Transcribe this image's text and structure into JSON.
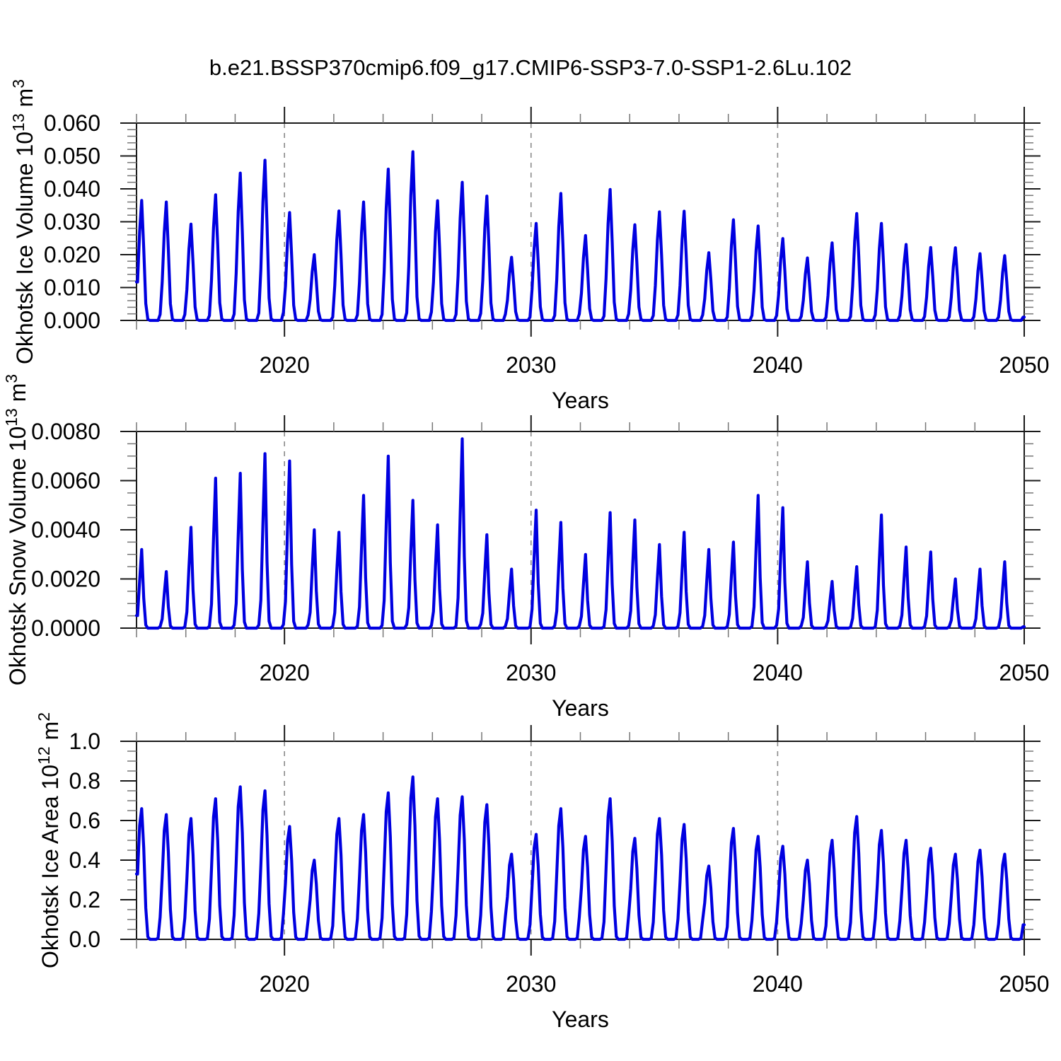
{
  "title": "b.e21.BSSP370cmip6.f09_g17.CMIP6-SSP3-7.0-SSP1-2.6Lu.102",
  "colors": {
    "line": "#0000e0",
    "axis": "#1a1a1a",
    "minor_tick": "#777777",
    "dashed_gridline": "#8a8a8a",
    "background": "#ffffff"
  },
  "chart_data": [
    {
      "type": "line",
      "panel": "okhotsk-ice-volume",
      "ylabel_segments": [
        {
          "t": "Okhotsk Ice Volume 10"
        },
        {
          "sup": "13"
        },
        {
          "t": " m"
        },
        {
          "sup": "3"
        }
      ],
      "xlabel": "Years",
      "xlim": [
        2014,
        2050
      ],
      "ylim": [
        0,
        0.06
      ],
      "grid": "dashed-vertical-only",
      "legend": "none",
      "xticks_major": [
        2020,
        2030,
        2040,
        2050
      ],
      "xtick_labels": [
        "2020",
        "2030",
        "2040",
        "2050"
      ],
      "xtick_minor_step": 2,
      "dashed_gridlines": [
        2020,
        2030,
        2040
      ],
      "ytick_step": 0.01,
      "ytick_minor_step": 0.002,
      "ytick_labels": [
        "0.000",
        "0.010",
        "0.020",
        "0.030",
        "0.040",
        "0.050",
        "0.060"
      ],
      "series_note": "monthly seasonal cycle; summer minima are 0; annual late-winter maxima listed per year",
      "years": [
        2014,
        2015,
        2016,
        2017,
        2018,
        2019,
        2020,
        2021,
        2022,
        2023,
        2024,
        2025,
        2026,
        2027,
        2028,
        2029,
        2030,
        2031,
        2032,
        2033,
        2034,
        2035,
        2036,
        2037,
        2038,
        2039,
        2040,
        2041,
        2042,
        2043,
        2044,
        2045,
        2046,
        2047,
        2048,
        2049
      ],
      "annual_peaks": [
        0.0365,
        0.036,
        0.0293,
        0.0382,
        0.0448,
        0.0487,
        0.0328,
        0.02,
        0.0333,
        0.036,
        0.046,
        0.0513,
        0.0364,
        0.042,
        0.0378,
        0.0192,
        0.0295,
        0.0386,
        0.0258,
        0.0398,
        0.0291,
        0.033,
        0.0332,
        0.0206,
        0.0306,
        0.0287,
        0.0249,
        0.019,
        0.0236,
        0.0325,
        0.0295,
        0.0231,
        0.0222,
        0.0221,
        0.0203,
        0.0197
      ],
      "monthly_shape": [
        0.32,
        0.74,
        1.0,
        0.6,
        0.14,
        0.01,
        0,
        0,
        0,
        0,
        0,
        0.05
      ]
    },
    {
      "type": "line",
      "panel": "okhotsk-snow-volume",
      "ylabel_segments": [
        {
          "t": "Okhotsk Snow Volume 10"
        },
        {
          "sup": "13"
        },
        {
          "t": " m"
        },
        {
          "sup": "3"
        }
      ],
      "xlabel": "Years",
      "xlim": [
        2014,
        2050
      ],
      "ylim": [
        0,
        0.008
      ],
      "grid": "dashed-vertical-only",
      "legend": "none",
      "xticks_major": [
        2020,
        2030,
        2040,
        2050
      ],
      "xtick_labels": [
        "2020",
        "2030",
        "2040",
        "2050"
      ],
      "xtick_minor_step": 2,
      "dashed_gridlines": [
        2020,
        2030,
        2040
      ],
      "ytick_step": 0.002,
      "ytick_minor_step": 0.0005,
      "ytick_labels": [
        "0.0000",
        "0.0020",
        "0.0040",
        "0.0060",
        "0.0080"
      ],
      "series_note": "monthly seasonal cycle; summer minima are 0; annual late-winter maxima listed per year",
      "years": [
        2014,
        2015,
        2016,
        2017,
        2018,
        2019,
        2020,
        2021,
        2022,
        2023,
        2024,
        2025,
        2026,
        2027,
        2028,
        2029,
        2030,
        2031,
        2032,
        2033,
        2034,
        2035,
        2036,
        2037,
        2038,
        2039,
        2040,
        2041,
        2042,
        2043,
        2044,
        2045,
        2046,
        2047,
        2048,
        2049
      ],
      "annual_peaks": [
        0.0032,
        0.0023,
        0.0041,
        0.0061,
        0.0063,
        0.0071,
        0.0068,
        0.004,
        0.0039,
        0.0054,
        0.007,
        0.0052,
        0.0042,
        0.0077,
        0.0038,
        0.0024,
        0.0048,
        0.0043,
        0.003,
        0.0047,
        0.0044,
        0.0034,
        0.0039,
        0.0032,
        0.0035,
        0.0054,
        0.0049,
        0.0027,
        0.0019,
        0.0025,
        0.0046,
        0.0033,
        0.0031,
        0.002,
        0.0024,
        0.0027
      ],
      "monthly_shape": [
        0.16,
        0.6,
        1.0,
        0.38,
        0.04,
        0,
        0,
        0,
        0,
        0,
        0,
        0.02
      ]
    },
    {
      "type": "line",
      "panel": "okhotsk-ice-area",
      "ylabel_segments": [
        {
          "t": "Okhotsk Ice Area 10"
        },
        {
          "sup": "12"
        },
        {
          "t": " m"
        },
        {
          "sup": "2"
        }
      ],
      "xlabel": "Years",
      "xlim": [
        2014,
        2050
      ],
      "ylim": [
        0,
        1.0
      ],
      "grid": "dashed-vertical-only",
      "legend": "none",
      "xticks_major": [
        2020,
        2030,
        2040,
        2050
      ],
      "xtick_labels": [
        "2020",
        "2030",
        "2040",
        "2050"
      ],
      "xtick_minor_step": 2,
      "dashed_gridlines": [
        2020,
        2030,
        2040
      ],
      "ytick_step": 0.2,
      "ytick_minor_step": 0.05,
      "ytick_labels": [
        "0.0",
        "0.2",
        "0.4",
        "0.6",
        "0.8",
        "1.0"
      ],
      "series_note": "monthly seasonal cycle; summer minima are 0; annual late-winter maxima listed per year",
      "years": [
        2014,
        2015,
        2016,
        2017,
        2018,
        2019,
        2020,
        2021,
        2022,
        2023,
        2024,
        2025,
        2026,
        2027,
        2028,
        2029,
        2030,
        2031,
        2032,
        2033,
        2034,
        2035,
        2036,
        2037,
        2038,
        2039,
        2040,
        2041,
        2042,
        2043,
        2044,
        2045,
        2046,
        2047,
        2048,
        2049
      ],
      "annual_peaks": [
        0.66,
        0.63,
        0.61,
        0.71,
        0.77,
        0.75,
        0.57,
        0.4,
        0.61,
        0.63,
        0.74,
        0.82,
        0.71,
        0.72,
        0.68,
        0.43,
        0.53,
        0.66,
        0.52,
        0.71,
        0.51,
        0.61,
        0.58,
        0.37,
        0.56,
        0.52,
        0.47,
        0.4,
        0.5,
        0.62,
        0.55,
        0.5,
        0.46,
        0.43,
        0.45,
        0.43
      ],
      "monthly_shape": [
        0.5,
        0.87,
        1.0,
        0.7,
        0.24,
        0.02,
        0,
        0,
        0,
        0,
        0.01,
        0.17
      ]
    }
  ]
}
